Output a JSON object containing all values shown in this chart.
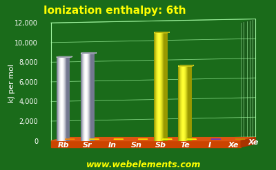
{
  "title": "Ionization enthalpy: 6th",
  "ylabel": "kJ per mol",
  "website": "www.webelements.com",
  "elements": [
    "Rb",
    "Sr",
    "In",
    "Sn",
    "Sb",
    "Te",
    "I",
    "Xe"
  ],
  "values": [
    8500,
    8900,
    0,
    0,
    11000,
    7600,
    0,
    0
  ],
  "dot_only": [
    false,
    false,
    true,
    true,
    false,
    false,
    true,
    true
  ],
  "bar_colors_main": [
    "#c0c8f0",
    "#c0c8f0",
    "#ffdd00",
    "#ffdd00",
    "#ffff00",
    "#ffff00",
    "#7755cc",
    "#dd9900"
  ],
  "dot_colors": [
    "#ff8800",
    "#ffdd00",
    "#ffdd00",
    "#ffdd00",
    "#ffff00",
    "#ffff00",
    "#6633cc",
    "#cc8800"
  ],
  "background_color": "#1a6b1a",
  "platform_front_color": "#cc4400",
  "platform_top_color": "#dd5511",
  "platform_right_color": "#aa3300",
  "back_wall_color": "#1a6b1a",
  "grid_color": "#aaffaa",
  "title_color": "#ffff00",
  "ylabel_color": "#ffffff",
  "tick_color": "#ffffff",
  "website_color": "#ffff00",
  "element_label_color": "#ffffff",
  "ylim_max": 12000,
  "yticks": [
    0,
    2000,
    4000,
    6000,
    8000,
    10000,
    12000
  ],
  "title_fontsize": 11,
  "ylabel_fontsize": 8,
  "website_fontsize": 9,
  "element_fontsize": 8
}
